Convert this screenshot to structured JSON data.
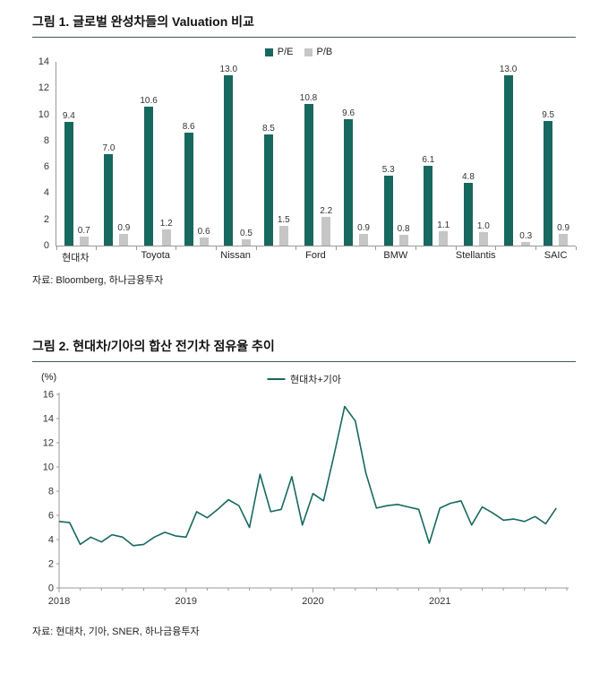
{
  "figure1": {
    "title": "그림 1. 글로벌 완성차들의 Valuation 비교",
    "source": "자료: Bloomberg, 하나금융투자"
  },
  "figure2": {
    "title": "그림 2. 현대차/기아의 합산 전기차 점유율 추이",
    "source": "자료: 현대차, 기아, SNER, 하나금융투자"
  },
  "colors": {
    "accent_teal": "#17685f",
    "bar_gray": "#c6c6c6",
    "title_rule": "#415e57",
    "axis_gray": "#999999"
  },
  "chart_data": [
    {
      "type": "bar",
      "title": "글로벌 완성차들의 Valuation 비교",
      "categories": [
        "현대차",
        "",
        "Toyota",
        "",
        "Nissan",
        "",
        "Ford",
        "",
        "BMW",
        "",
        "Stellantis",
        "",
        "SAIC"
      ],
      "series": [
        {
          "name": "P/E",
          "color": "#17685f",
          "values": [
            9.4,
            7.0,
            10.6,
            8.6,
            13.0,
            8.5,
            10.8,
            9.6,
            5.3,
            6.1,
            4.8,
            13.0,
            9.5
          ]
        },
        {
          "name": "P/B",
          "color": "#c6c6c6",
          "values": [
            0.7,
            0.9,
            1.2,
            0.6,
            0.5,
            1.5,
            2.2,
            0.9,
            0.8,
            1.1,
            1.0,
            0.3,
            0.9
          ]
        }
      ],
      "ylim": [
        0,
        14
      ],
      "ytick_step": 2,
      "grid": false,
      "legend_position": "top",
      "value_labels": true
    },
    {
      "type": "line",
      "title": "현대차/기아의 합산 전기차 점유율 추이",
      "ylabel": "(%)",
      "ylim": [
        0,
        16
      ],
      "ytick_step": 2,
      "x_tick_labels": [
        "2018",
        "2019",
        "2020",
        "2021"
      ],
      "x_tick_positions": [
        0,
        12,
        24,
        36
      ],
      "points_per_year": 12,
      "grid": false,
      "legend_position": "top",
      "series": [
        {
          "name": "현대차+기아",
          "color": "#17685f",
          "values": [
            5.5,
            5.4,
            3.6,
            4.2,
            3.8,
            4.4,
            4.2,
            3.5,
            3.6,
            4.2,
            4.6,
            4.3,
            4.2,
            6.3,
            5.8,
            6.5,
            7.3,
            6.8,
            5.0,
            9.4,
            6.3,
            6.5,
            9.2,
            5.2,
            7.8,
            7.2,
            11.0,
            15.0,
            13.8,
            9.5,
            6.6,
            6.8,
            6.9,
            6.7,
            6.5,
            3.7,
            6.6,
            7.0,
            7.2,
            5.2,
            6.7,
            6.2,
            5.6,
            5.7,
            5.5,
            5.9,
            5.3,
            6.6
          ]
        }
      ]
    }
  ]
}
